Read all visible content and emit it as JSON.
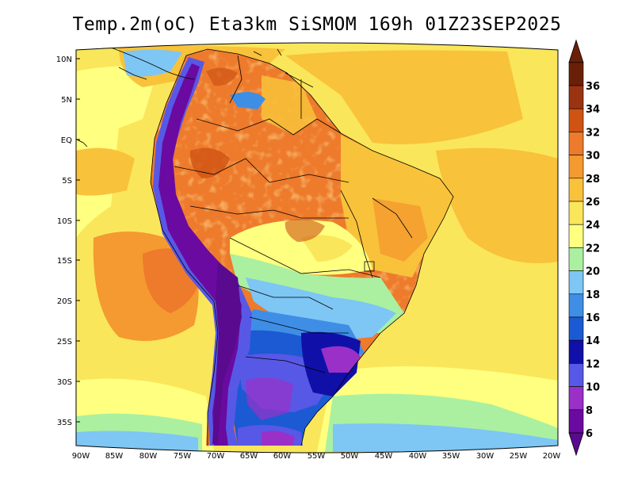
{
  "title": "Temp.2m(oC) Eta3km SiSMOM 169h 01Z23SEP2025",
  "lat_labels": [
    "10N",
    "5N",
    "EQ",
    "5S",
    "10S",
    "15S",
    "20S",
    "25S",
    "30S",
    "35S"
  ],
  "lon_labels": [
    "90W",
    "85W",
    "80W",
    "75W",
    "70W",
    "65W",
    "60W",
    "55W",
    "50W",
    "45W",
    "40W",
    "35W",
    "30W",
    "25W",
    "20W"
  ],
  "colorbar": {
    "labels": [
      "6",
      "8",
      "10",
      "12",
      "14",
      "16",
      "18",
      "20",
      "22",
      "24",
      "26",
      "28",
      "30",
      "32",
      "34",
      "36"
    ],
    "colors": [
      "#6a0aa0",
      "#9a30c8",
      "#5858e6",
      "#1010a8",
      "#1b5ad2",
      "#3f8ee6",
      "#7ec6f4",
      "#aaf0a0",
      "#ffff80",
      "#fae65a",
      "#f8c23a",
      "#f49a30",
      "#ee7a2c",
      "#cf5414",
      "#9a3410",
      "#6a2008"
    ],
    "under_color": "#5a0a8e",
    "over_color": "#6a2008"
  }
}
